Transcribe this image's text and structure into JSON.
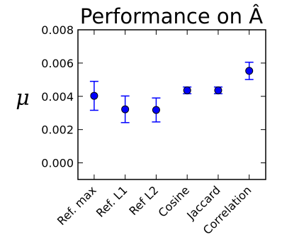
{
  "chart_data": {
    "type": "scatter",
    "title": "Performance on Â",
    "ylabel": "μ",
    "xlabel": "",
    "categories": [
      "Ref. max",
      "Ref. L1",
      "Ref L2",
      "Cosine",
      "Jaccard",
      "Correlation"
    ],
    "values": [
      0.00403,
      0.00322,
      0.00318,
      0.00436,
      0.00436,
      0.00553
    ],
    "error": [
      0.00087,
      0.0008,
      0.00072,
      0.0002,
      0.0002,
      0.00052
    ],
    "ylim": [
      -0.001,
      0.008
    ],
    "yticks": [
      "0.000",
      "0.002",
      "0.004",
      "0.006",
      "0.008"
    ],
    "ytick_values": [
      0.0,
      0.002,
      0.004,
      0.006,
      0.008
    ],
    "grid": false,
    "colors": {
      "marker": "#0000ff",
      "errorbar": "#0000ff",
      "edge": "#000000"
    }
  }
}
